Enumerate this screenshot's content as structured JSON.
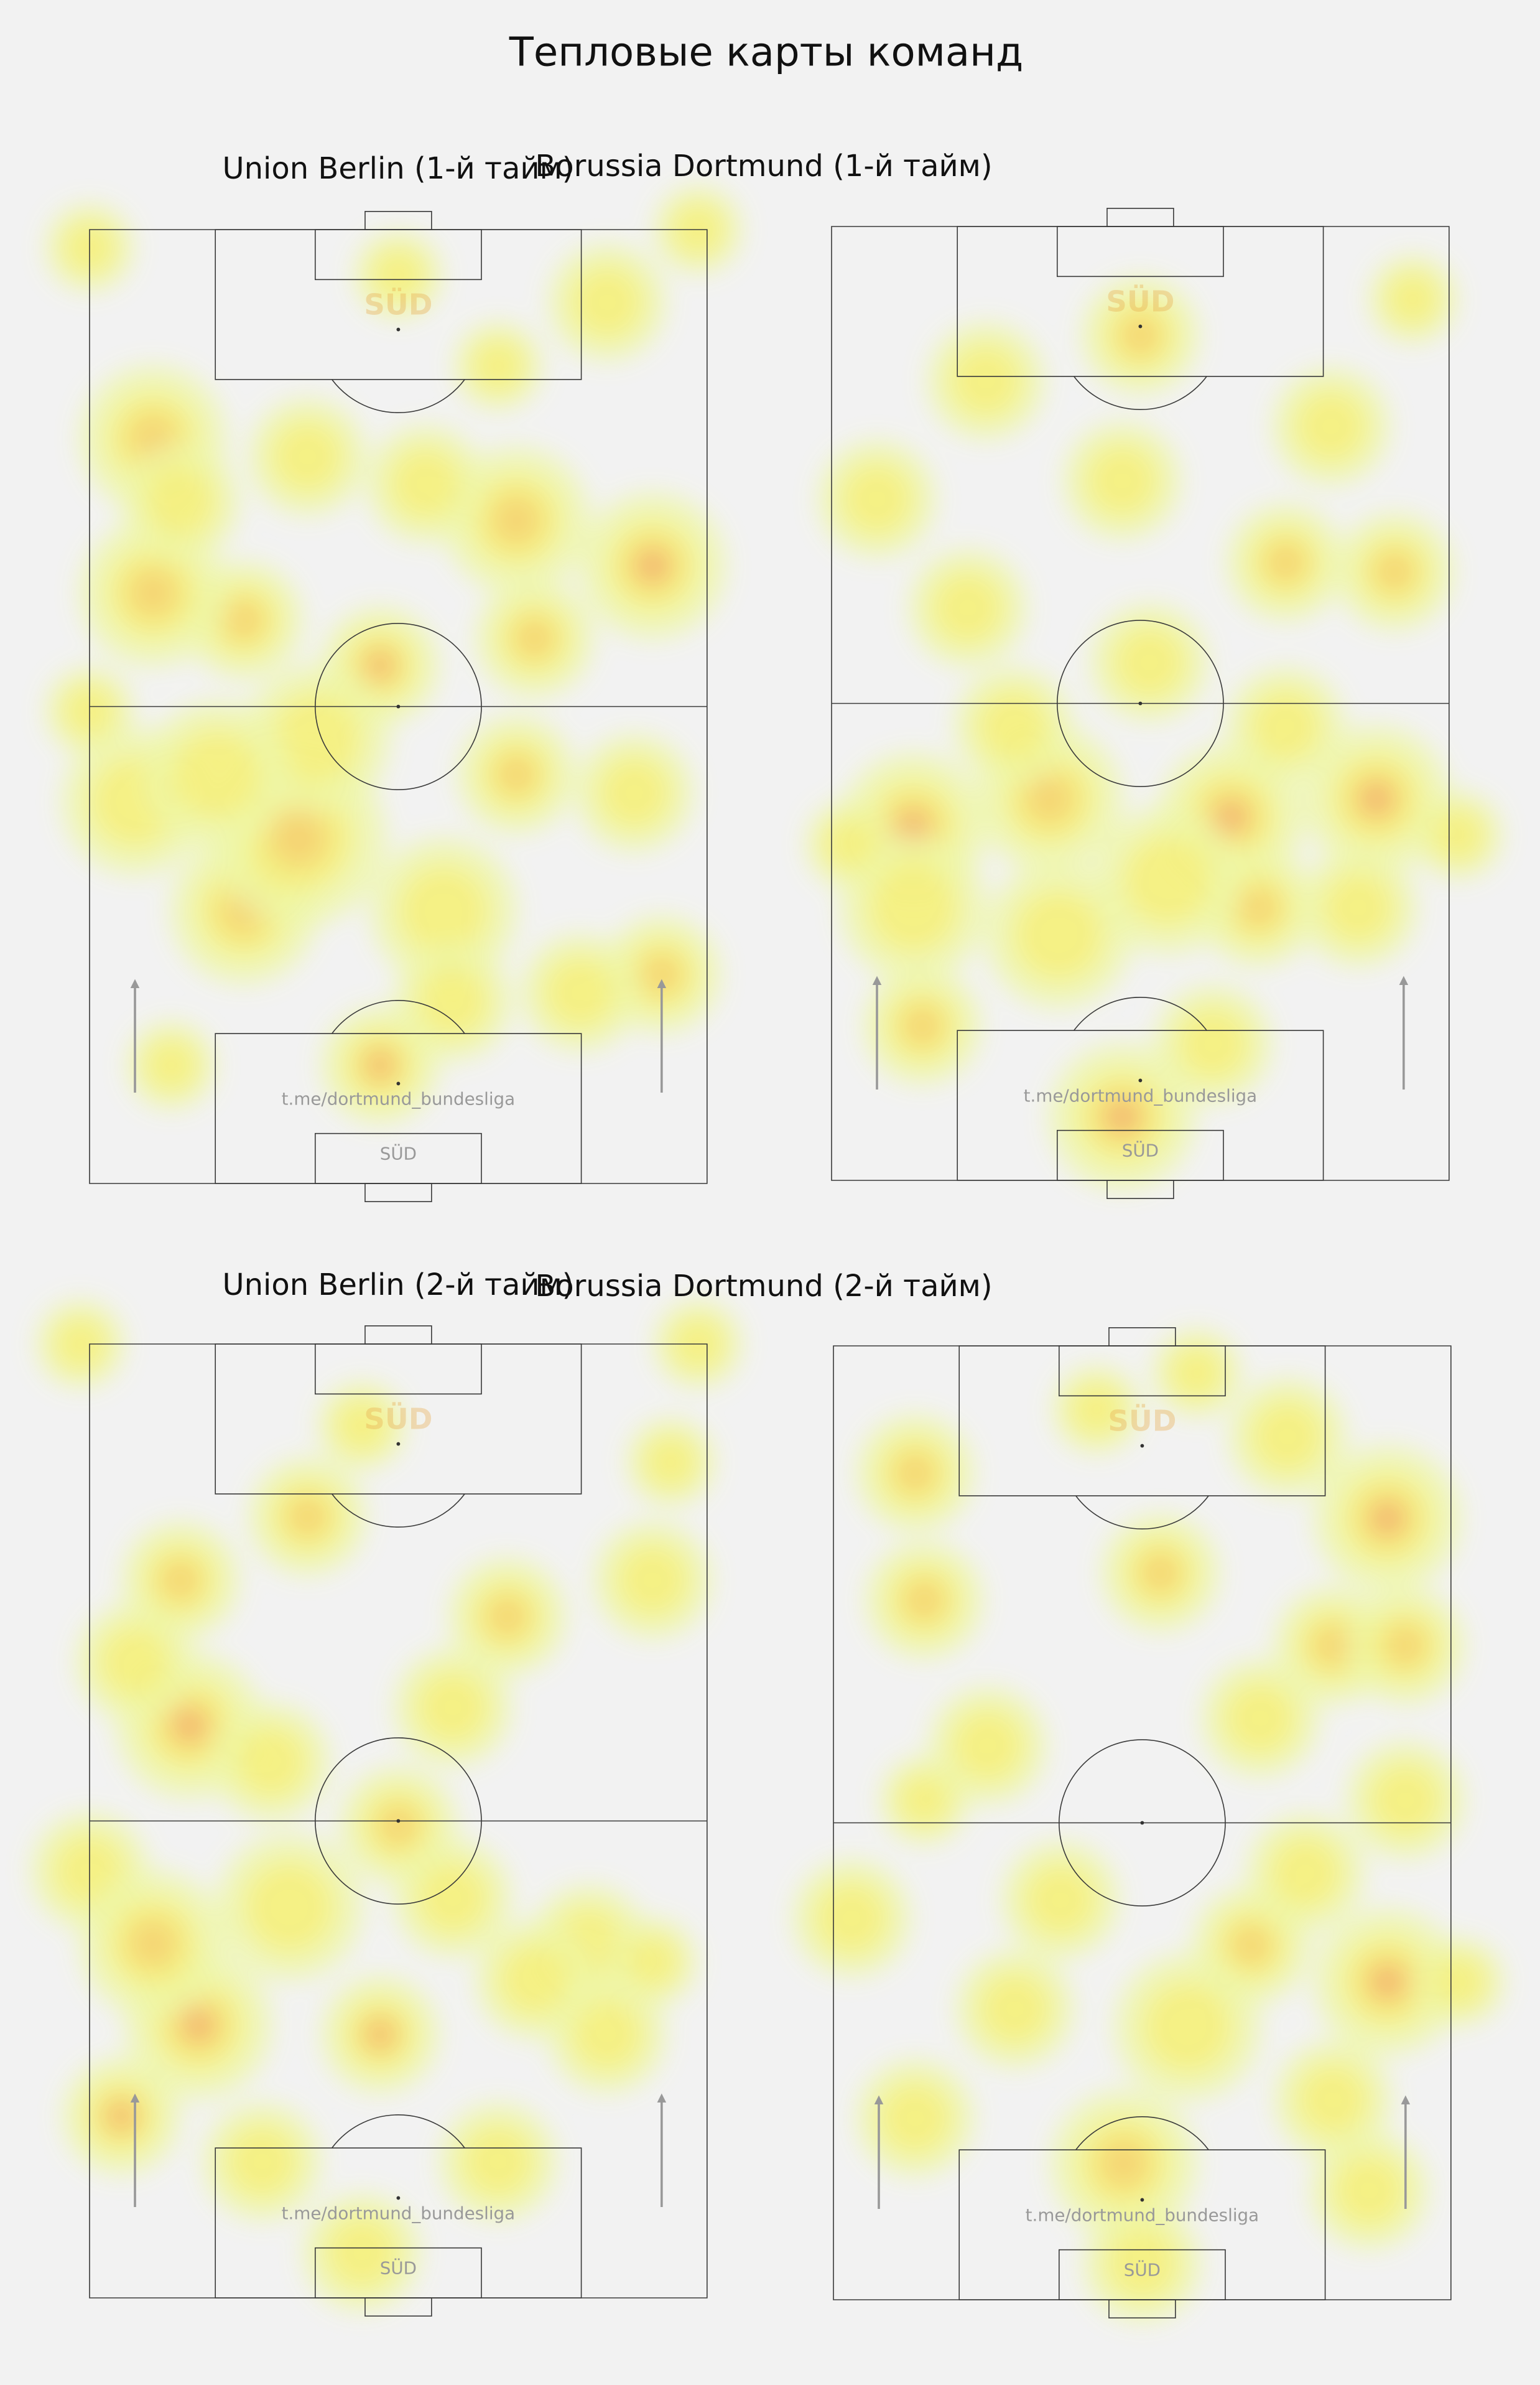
{
  "title": "Тепловые карты команд",
  "panels": [
    {
      "title": "Union Berlin (1-й тайм)",
      "watermark": "t.me/dortmund_bundesliga",
      "stand": "SÜD",
      "logo": "SÜD"
    },
    {
      "title": "Borussia Dortmund (1-й тайм)",
      "watermark": "t.me/dortmund_bundesliga",
      "stand": "SÜD",
      "logo": "SÜD"
    },
    {
      "title": "Union Berlin (2-й тайм)",
      "watermark": "t.me/dortmund_bundesliga",
      "stand": "SÜD",
      "logo": "SÜD"
    },
    {
      "title": "Borussia Dortmund (2-й тайм)",
      "watermark": "t.me/dortmund_bundesliga",
      "stand": "SÜD",
      "logo": "SÜD"
    }
  ]
}
